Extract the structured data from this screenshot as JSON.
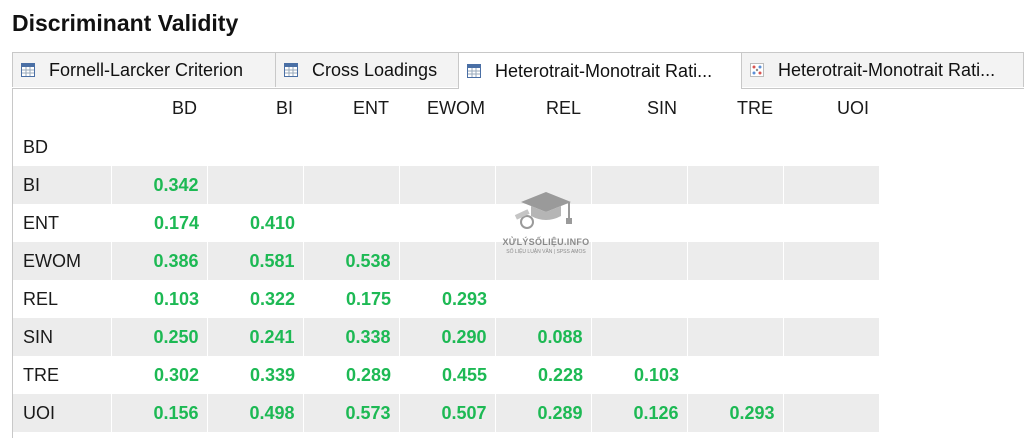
{
  "title": "Discriminant Validity",
  "tabs": [
    {
      "label": "Fornell-Larcker Criterion",
      "icon": "table-icon",
      "active": false
    },
    {
      "label": "Cross Loadings",
      "icon": "table-icon",
      "active": false
    },
    {
      "label": "Heterotrait-Monotrait Rati...",
      "icon": "table-icon",
      "active": true
    },
    {
      "label": "Heterotrait-Monotrait Rati...",
      "icon": "matrix-chart-icon",
      "active": false
    }
  ],
  "columns": [
    "BD",
    "BI",
    "ENT",
    "EWOM",
    "REL",
    "SIN",
    "TRE",
    "UOI"
  ],
  "rows": [
    {
      "label": "BD",
      "values": []
    },
    {
      "label": "BI",
      "values": [
        "0.342"
      ]
    },
    {
      "label": "ENT",
      "values": [
        "0.174",
        "0.410"
      ]
    },
    {
      "label": "EWOM",
      "values": [
        "0.386",
        "0.581",
        "0.538"
      ]
    },
    {
      "label": "REL",
      "values": [
        "0.103",
        "0.322",
        "0.175",
        "0.293"
      ]
    },
    {
      "label": "SIN",
      "values": [
        "0.250",
        "0.241",
        "0.338",
        "0.290",
        "0.088"
      ]
    },
    {
      "label": "TRE",
      "values": [
        "0.302",
        "0.339",
        "0.289",
        "0.455",
        "0.228",
        "0.103"
      ]
    },
    {
      "label": "UOI",
      "values": [
        "0.156",
        "0.498",
        "0.573",
        "0.507",
        "0.289",
        "0.126",
        "0.293"
      ]
    }
  ],
  "watermark": {
    "name": "XỬLÝSỐLIỆU.INFO",
    "sub": "SỐ LIỆU LUẬN VĂN | SPSS AMOS"
  },
  "colors": {
    "value": "#1db954",
    "shaded_row": "#ececec"
  }
}
